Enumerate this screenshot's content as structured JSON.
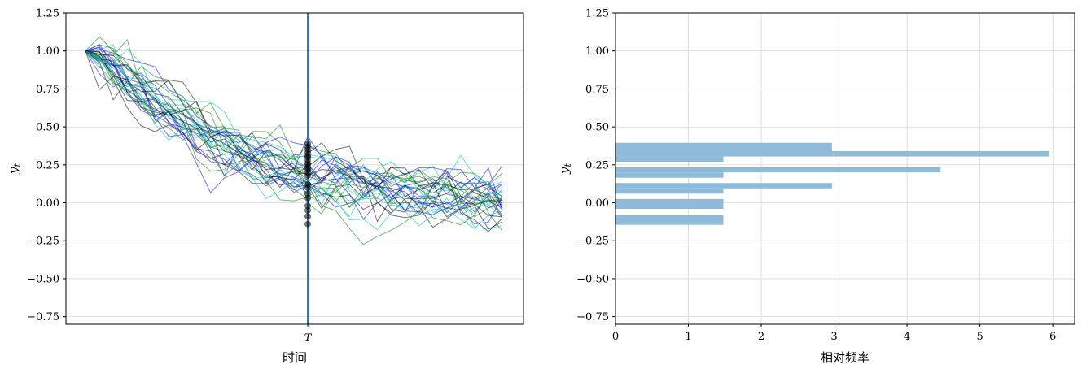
{
  "chart_data": [
    {
      "type": "line",
      "xlabel": "时间",
      "ylabel": "y_t",
      "ylabel_main": "y",
      "ylabel_sub": "t",
      "ylim": [
        -0.8,
        1.25
      ],
      "yticks": [
        -0.75,
        -0.5,
        -0.25,
        0.0,
        0.25,
        0.5,
        0.75,
        1.0,
        1.25
      ],
      "ytick_labels": [
        "−0.75",
        "−0.50",
        "−0.25",
        "0.00",
        "0.25",
        "0.50",
        "0.75",
        "1.00",
        "1.25"
      ],
      "x_range": [
        0,
        30
      ],
      "vline": {
        "x": 16,
        "label": "T",
        "color": "#1f77b4"
      },
      "grid": "y",
      "start_value": 1.0,
      "path_colors": [
        "#0000ff",
        "#008000",
        "#00bfbf",
        "#000000"
      ],
      "scatter_at_T": [
        0.39,
        0.37,
        0.35,
        0.33,
        0.31,
        0.3,
        0.28,
        0.26,
        0.25,
        0.23,
        0.22,
        0.2,
        0.18,
        0.12,
        0.1,
        0.06,
        0.03,
        -0.02,
        -0.05,
        -0.09,
        -0.14
      ]
    },
    {
      "type": "bar",
      "orientation": "horizontal",
      "xlabel": "相对频率",
      "ylabel": "y_t",
      "ylabel_main": "y",
      "ylabel_sub": "t",
      "ylim": [
        -0.8,
        1.25
      ],
      "yticks": [
        -0.75,
        -0.5,
        -0.25,
        0.0,
        0.25,
        0.5,
        0.75,
        1.0,
        1.25
      ],
      "ytick_labels": [
        "−0.75",
        "−0.50",
        "−0.25",
        "0.00",
        "0.25",
        "0.50",
        "0.75",
        "1.00",
        "1.25"
      ],
      "xlim": [
        0,
        6.3
      ],
      "xticks": [
        0,
        1,
        2,
        3,
        4,
        5,
        6
      ],
      "xtick_labels": [
        "0",
        "1",
        "2",
        "3",
        "4",
        "5",
        "6"
      ],
      "bar_color": "#8fbbd9",
      "bins": [
        {
          "y0": -0.145,
          "y1": -0.08,
          "value": 1.48
        },
        {
          "y0": -0.04,
          "y1": 0.025,
          "value": 1.48
        },
        {
          "y0": 0.06,
          "y1": 0.095,
          "value": 1.48
        },
        {
          "y0": 0.095,
          "y1": 0.13,
          "value": 2.97
        },
        {
          "y0": 0.165,
          "y1": 0.2,
          "value": 1.48
        },
        {
          "y0": 0.2,
          "y1": 0.235,
          "value": 4.46
        },
        {
          "y0": 0.27,
          "y1": 0.305,
          "value": 1.48
        },
        {
          "y0": 0.305,
          "y1": 0.34,
          "value": 5.95
        },
        {
          "y0": 0.34,
          "y1": 0.395,
          "value": 2.97
        }
      ],
      "grid": "both"
    }
  ]
}
